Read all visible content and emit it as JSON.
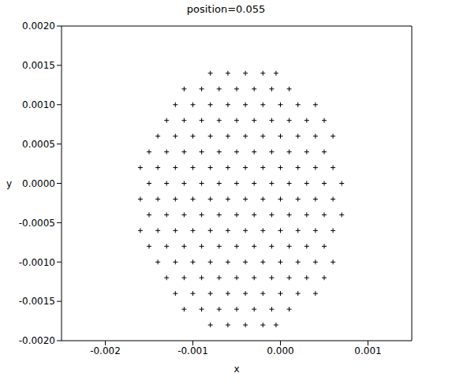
{
  "chart_data": {
    "type": "scatter",
    "title": "position=0.055",
    "x_label": "x",
    "y_label": "y",
    "color": "#000000",
    "marker": "plus",
    "grid": false,
    "xlim": [
      -0.0025,
      0.0015
    ],
    "xticks": [
      -0.002,
      -0.001,
      {
        "value": 0,
        "label": "0.000"
      },
      0.001
    ],
    "ylim": [
      -0.002,
      0.002
    ],
    "yticks": [
      {
        "value": 0.002,
        "label": "0.0020"
      },
      0.0015,
      {
        "value": 0.001,
        "label": "0.0010"
      },
      0.0005,
      {
        "value": 0,
        "label": "0.0000"
      },
      -0.0005,
      {
        "value": -0.001,
        "label": "-0.0010"
      },
      -0.0015,
      {
        "value": -0.002,
        "label": "-0.0020"
      }
    ],
    "x": [
      -0.0008,
      -0.0006,
      -0.0004,
      -0.0002,
      -5e-05,
      -0.0011,
      -0.0009,
      -0.0007,
      -0.0005,
      -0.0003,
      -0.0001,
      0.0001,
      -0.0012,
      -0.001,
      -0.0008,
      -0.0006,
      -0.0004,
      -0.0002,
      0,
      0.0002,
      0.0004,
      -0.0013,
      -0.0011,
      -0.0009,
      -0.0007,
      -0.0005,
      -0.0003,
      -0.0001,
      0.0001,
      0.0003,
      0.0005,
      -0.0014,
      -0.0012,
      -0.001,
      -0.0008,
      -0.0006,
      -0.0004,
      -0.0002,
      0,
      0.0002,
      0.0004,
      0.0006,
      -0.0015,
      -0.0013,
      -0.0011,
      -0.0009,
      -0.0007,
      -0.0005,
      -0.0003,
      -0.0001,
      0.0001,
      0.0003,
      0.0005,
      -0.0016,
      -0.0014,
      -0.0012,
      -0.001,
      -0.0008,
      -0.0006,
      -0.0004,
      -0.0002,
      0,
      0.0002,
      0.0004,
      0.0006,
      -0.0015,
      -0.0013,
      -0.0011,
      -0.0009,
      -0.0007,
      -0.0005,
      -0.0003,
      -0.0001,
      0.0001,
      0.0003,
      0.0005,
      0.0007,
      -0.0016,
      -0.0014,
      -0.0012,
      -0.001,
      -0.0008,
      -0.0006,
      -0.0004,
      -0.0002,
      0,
      0.0002,
      0.0004,
      0.0006,
      -0.0015,
      -0.0013,
      -0.0011,
      -0.0009,
      -0.0007,
      -0.0005,
      -0.0003,
      -0.0001,
      0.0001,
      0.0003,
      0.0005,
      0.0007,
      -0.0016,
      -0.0014,
      -0.0012,
      -0.001,
      -0.0008,
      -0.0006,
      -0.0004,
      -0.0002,
      0,
      0.0002,
      0.0004,
      0.0006,
      -0.0015,
      -0.0013,
      -0.0011,
      -0.0009,
      -0.0007,
      -0.0005,
      -0.0003,
      -0.0001,
      0.0001,
      0.0003,
      0.0005,
      -0.0014,
      -0.0012,
      -0.001,
      -0.0008,
      -0.0006,
      -0.0004,
      -0.0002,
      0,
      0.0002,
      0.0004,
      0.0006,
      -0.0013,
      -0.0011,
      -0.0009,
      -0.0007,
      -0.0005,
      -0.0003,
      -0.0001,
      0.0001,
      0.0003,
      0.0005,
      -0.0012,
      -0.001,
      -0.0008,
      -0.0006,
      -0.0004,
      -0.0002,
      0,
      0.0002,
      0.0004,
      -0.0011,
      -0.0009,
      -0.0007,
      -0.0005,
      -0.0003,
      -0.0001,
      0.0001,
      -0.0008,
      -0.0006,
      -0.0004,
      -0.0002,
      -5e-05
    ],
    "values": [
      0.0014,
      0.0014,
      0.0014,
      0.0014,
      0.0014,
      0.0012,
      0.0012,
      0.0012,
      0.0012,
      0.0012,
      0.0012,
      0.0012,
      0.001,
      0.001,
      0.001,
      0.001,
      0.001,
      0.001,
      0.001,
      0.001,
      0.001,
      0.0008,
      0.0008,
      0.0008,
      0.0008,
      0.0008,
      0.0008,
      0.0008,
      0.0008,
      0.0008,
      0.0008,
      0.0006,
      0.0006,
      0.0006,
      0.0006,
      0.0006,
      0.0006,
      0.0006,
      0.0006,
      0.0006,
      0.0006,
      0.0006,
      0.0004,
      0.0004,
      0.0004,
      0.0004,
      0.0004,
      0.0004,
      0.0004,
      0.0004,
      0.0004,
      0.0004,
      0.0004,
      0.0002,
      0.0002,
      0.0002,
      0.0002,
      0.0002,
      0.0002,
      0.0002,
      0.0002,
      0.0002,
      0.0002,
      0.0002,
      0.0002,
      0,
      0,
      0,
      0,
      0,
      0,
      0,
      0,
      0,
      0,
      0,
      0,
      -0.0002,
      -0.0002,
      -0.0002,
      -0.0002,
      -0.0002,
      -0.0002,
      -0.0002,
      -0.0002,
      -0.0002,
      -0.0002,
      -0.0002,
      -0.0002,
      -0.0004,
      -0.0004,
      -0.0004,
      -0.0004,
      -0.0004,
      -0.0004,
      -0.0004,
      -0.0004,
      -0.0004,
      -0.0004,
      -0.0004,
      -0.0004,
      -0.0006,
      -0.0006,
      -0.0006,
      -0.0006,
      -0.0006,
      -0.0006,
      -0.0006,
      -0.0006,
      -0.0006,
      -0.0006,
      -0.0006,
      -0.0006,
      -0.0008,
      -0.0008,
      -0.0008,
      -0.0008,
      -0.0008,
      -0.0008,
      -0.0008,
      -0.0008,
      -0.0008,
      -0.0008,
      -0.0008,
      -0.001,
      -0.001,
      -0.001,
      -0.001,
      -0.001,
      -0.001,
      -0.001,
      -0.001,
      -0.001,
      -0.001,
      -0.001,
      -0.0012,
      -0.0012,
      -0.0012,
      -0.0012,
      -0.0012,
      -0.0012,
      -0.0012,
      -0.0012,
      -0.0012,
      -0.0012,
      -0.0014,
      -0.0014,
      -0.0014,
      -0.0014,
      -0.0014,
      -0.0014,
      -0.0014,
      -0.0014,
      -0.0014,
      -0.0016,
      -0.0016,
      -0.0016,
      -0.0016,
      -0.0016,
      -0.0016,
      -0.0016,
      -0.0018,
      -0.0018,
      -0.0018,
      -0.0018,
      -0.0018
    ]
  }
}
